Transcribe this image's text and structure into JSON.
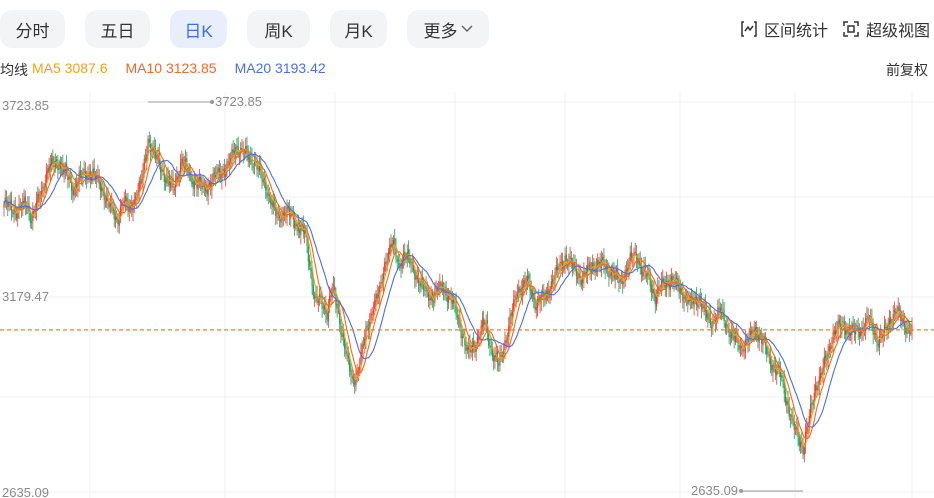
{
  "tabs": [
    {
      "label": "分时",
      "active": false
    },
    {
      "label": "五日",
      "active": false
    },
    {
      "label": "日K",
      "active": true
    },
    {
      "label": "周K",
      "active": false
    },
    {
      "label": "月K",
      "active": false
    },
    {
      "label": "更多",
      "active": false
    }
  ],
  "tools": {
    "range_stats": "区间统计",
    "super_view": "超级视图"
  },
  "legend": {
    "prefix": "均线",
    "ma5": "MA5 3087.6",
    "ma10": "MA10 3123.85",
    "ma20": "MA20 3193.42"
  },
  "adjust_label": "前复权",
  "colors": {
    "up": "#ee3b2c",
    "down": "#1aa260",
    "ma5": "#f0a21c",
    "ma10": "#ee6a2a",
    "ma20": "#4a6fe3",
    "last": "#f08020"
  },
  "chart_data": {
    "type": "candlestick",
    "y_ticks": [
      "3723.85",
      "3179.47",
      "2635.09"
    ],
    "max_label": "3723.85",
    "min_label": "2635.09",
    "ylim": [
      2635.09,
      3723.85
    ],
    "last_price": 3087.6,
    "close_anchors": [
      [
        0,
        3440
      ],
      [
        10,
        3420
      ],
      [
        18,
        3440
      ],
      [
        22,
        3400
      ],
      [
        30,
        3470
      ],
      [
        35,
        3540
      ],
      [
        45,
        3555
      ],
      [
        55,
        3480
      ],
      [
        60,
        3510
      ],
      [
        70,
        3530
      ],
      [
        80,
        3470
      ],
      [
        85,
        3430
      ],
      [
        90,
        3390
      ],
      [
        95,
        3450
      ],
      [
        100,
        3420
      ],
      [
        110,
        3500
      ],
      [
        115,
        3620
      ],
      [
        120,
        3580
      ],
      [
        128,
        3520
      ],
      [
        135,
        3480
      ],
      [
        142,
        3560
      ],
      [
        150,
        3510
      ],
      [
        160,
        3480
      ],
      [
        170,
        3520
      ],
      [
        180,
        3550
      ],
      [
        185,
        3600
      ],
      [
        192,
        3580
      ],
      [
        200,
        3560
      ],
      [
        210,
        3480
      ],
      [
        218,
        3400
      ],
      [
        225,
        3420
      ],
      [
        232,
        3390
      ],
      [
        240,
        3360
      ],
      [
        248,
        3180
      ],
      [
        258,
        3140
      ],
      [
        262,
        3210
      ],
      [
        270,
        3080
      ],
      [
        278,
        2940
      ],
      [
        282,
        2970
      ],
      [
        288,
        3060
      ],
      [
        295,
        3160
      ],
      [
        300,
        3190
      ],
      [
        305,
        3290
      ],
      [
        310,
        3330
      ],
      [
        315,
        3270
      ],
      [
        320,
        3300
      ],
      [
        328,
        3250
      ],
      [
        335,
        3200
      ],
      [
        342,
        3180
      ],
      [
        350,
        3210
      ],
      [
        357,
        3170
      ],
      [
        362,
        3130
      ],
      [
        370,
        3020
      ],
      [
        378,
        3060
      ],
      [
        384,
        3110
      ],
      [
        390,
        3020
      ],
      [
        395,
        2990
      ],
      [
        402,
        3080
      ],
      [
        410,
        3200
      ],
      [
        418,
        3220
      ],
      [
        425,
        3160
      ],
      [
        432,
        3180
      ],
      [
        440,
        3240
      ],
      [
        448,
        3290
      ],
      [
        455,
        3260
      ],
      [
        462,
        3230
      ],
      [
        470,
        3270
      ],
      [
        478,
        3270
      ],
      [
        485,
        3250
      ],
      [
        492,
        3220
      ],
      [
        500,
        3280
      ],
      [
        505,
        3300
      ],
      [
        510,
        3250
      ],
      [
        515,
        3230
      ],
      [
        520,
        3180
      ],
      [
        525,
        3210
      ],
      [
        532,
        3230
      ],
      [
        540,
        3200
      ],
      [
        548,
        3160
      ],
      [
        555,
        3180
      ],
      [
        560,
        3130
      ],
      [
        565,
        3110
      ],
      [
        572,
        3140
      ],
      [
        580,
        3080
      ],
      [
        588,
        3040
      ],
      [
        595,
        3060
      ],
      [
        600,
        3090
      ],
      [
        605,
        3060
      ],
      [
        612,
        3000
      ],
      [
        620,
        2960
      ],
      [
        625,
        2890
      ],
      [
        630,
        2820
      ],
      [
        638,
        2760
      ],
      [
        643,
        2840
      ],
      [
        648,
        2930
      ],
      [
        652,
        2960
      ],
      [
        658,
        3020
      ],
      [
        662,
        3080
      ],
      [
        670,
        3100
      ],
      [
        678,
        3080
      ],
      [
        685,
        3090
      ],
      [
        690,
        3120
      ],
      [
        698,
        3060
      ],
      [
        702,
        3070
      ],
      [
        708,
        3120
      ],
      [
        712,
        3140
      ],
      [
        718,
        3110
      ],
      [
        725,
        3080
      ]
    ]
  }
}
